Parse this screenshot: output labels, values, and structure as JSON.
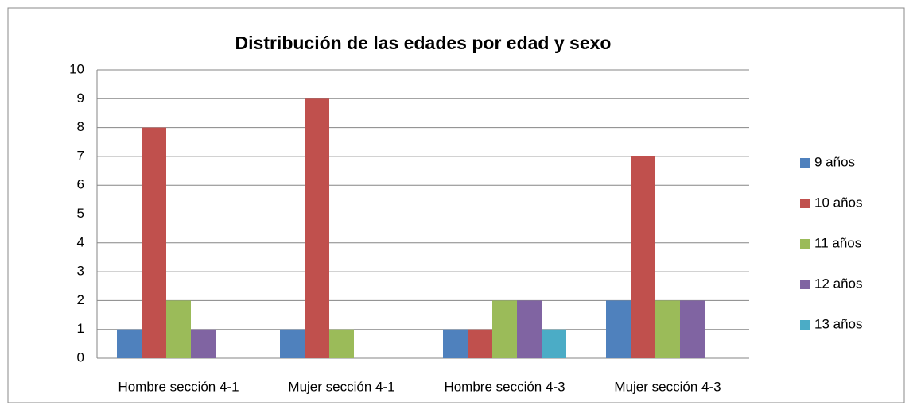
{
  "chart_data": {
    "type": "bar",
    "title": "Distribución de las edades por edad y sexo",
    "categories": [
      "Hombre sección 4-1",
      "Mujer sección 4-1",
      "Hombre sección 4-3",
      "Mujer sección 4-3"
    ],
    "series": [
      {
        "name": "9 años",
        "color": "#4f81bd",
        "values": [
          1,
          1,
          1,
          2
        ]
      },
      {
        "name": "10 años",
        "color": "#c0504d",
        "values": [
          8,
          9,
          1,
          7
        ]
      },
      {
        "name": "11 años",
        "color": "#9bbb59",
        "values": [
          2,
          1,
          2,
          2
        ]
      },
      {
        "name": "12 años",
        "color": "#8064a2",
        "values": [
          1,
          0,
          2,
          2
        ]
      },
      {
        "name": "13 años",
        "color": "#4bacc6",
        "values": [
          0,
          0,
          1,
          0
        ]
      }
    ],
    "ylim": [
      0,
      10
    ],
    "yticks": [
      0,
      1,
      2,
      3,
      4,
      5,
      6,
      7,
      8,
      9,
      10
    ],
    "grid": true,
    "legend": "right"
  }
}
